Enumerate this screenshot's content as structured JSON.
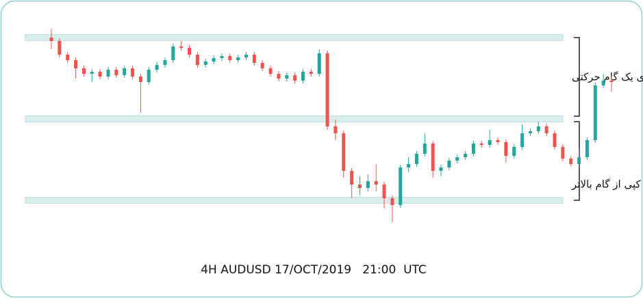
{
  "chart_data": {
    "type": "candlestick",
    "title": "4H AUDUSD 17/OCT/2019   21:00  UTC",
    "ylim": [
      0,
      290
    ],
    "up_color": "#26a69a",
    "down_color": "#ef5350",
    "band_color": "#d9eeec",
    "levels": [
      275,
      156,
      37
    ],
    "annotations": [
      "اندازه گیری یک گام حرکتی",
      "کپی از گام بالاتر"
    ],
    "ohlc": [
      [
        275,
        288,
        258,
        270
      ],
      [
        270,
        274,
        246,
        250
      ],
      [
        250,
        254,
        238,
        242
      ],
      [
        242,
        246,
        215,
        230
      ],
      [
        230,
        234,
        218,
        222
      ],
      [
        222,
        229,
        210,
        225
      ],
      [
        225,
        229,
        214,
        218
      ],
      [
        218,
        232,
        214,
        228
      ],
      [
        228,
        232,
        216,
        220
      ],
      [
        220,
        234,
        216,
        230
      ],
      [
        230,
        234,
        214,
        218
      ],
      [
        218,
        222,
        165,
        210
      ],
      [
        210,
        232,
        206,
        228
      ],
      [
        228,
        239,
        224,
        235
      ],
      [
        235,
        246,
        231,
        242
      ],
      [
        242,
        266,
        238,
        262
      ],
      [
        262,
        270,
        256,
        260
      ],
      [
        260,
        264,
        246,
        250
      ],
      [
        250,
        254,
        231,
        235
      ],
      [
        235,
        244,
        231,
        240
      ],
      [
        240,
        249,
        236,
        245
      ],
      [
        245,
        252,
        241,
        248
      ],
      [
        248,
        252,
        238,
        242
      ],
      [
        242,
        250,
        238,
        246
      ],
      [
        246,
        254,
        242,
        250
      ],
      [
        250,
        254,
        234,
        238
      ],
      [
        238,
        242,
        226,
        230
      ],
      [
        230,
        234,
        218,
        222
      ],
      [
        222,
        226,
        211,
        215
      ],
      [
        215,
        224,
        211,
        220
      ],
      [
        220,
        224,
        208,
        212
      ],
      [
        212,
        229,
        208,
        225
      ],
      [
        225,
        229,
        218,
        222
      ],
      [
        222,
        258,
        218,
        252
      ],
      [
        252,
        256,
        140,
        145
      ],
      [
        145,
        155,
        125,
        135
      ],
      [
        135,
        139,
        70,
        80
      ],
      [
        80,
        84,
        40,
        60
      ],
      [
        60,
        72,
        45,
        55
      ],
      [
        55,
        75,
        50,
        65
      ],
      [
        65,
        90,
        50,
        60
      ],
      [
        60,
        64,
        25,
        40
      ],
      [
        40,
        44,
        5,
        30
      ],
      [
        30,
        89,
        26,
        85
      ],
      [
        85,
        100,
        78,
        90
      ],
      [
        90,
        109,
        86,
        105
      ],
      [
        105,
        135,
        101,
        120
      ],
      [
        120,
        124,
        70,
        80
      ],
      [
        80,
        89,
        72,
        85
      ],
      [
        85,
        99,
        81,
        95
      ],
      [
        95,
        104,
        91,
        100
      ],
      [
        100,
        109,
        96,
        105
      ],
      [
        105,
        124,
        101,
        120
      ],
      [
        120,
        124,
        114,
        118
      ],
      [
        118,
        140,
        114,
        125
      ],
      [
        125,
        129,
        118,
        122
      ],
      [
        122,
        126,
        92,
        102
      ],
      [
        102,
        119,
        98,
        115
      ],
      [
        115,
        148,
        111,
        135
      ],
      [
        135,
        142,
        131,
        138
      ],
      [
        138,
        152,
        134,
        145
      ],
      [
        145,
        149,
        131,
        135
      ],
      [
        135,
        139,
        111,
        115
      ],
      [
        115,
        119,
        94,
        98
      ],
      [
        98,
        102,
        86,
        90
      ],
      [
        90,
        114,
        86,
        100
      ],
      [
        100,
        129,
        96,
        125
      ],
      [
        125,
        209,
        121,
        205
      ],
      [
        205,
        222,
        201,
        212
      ],
      [
        212,
        218,
        196,
        210
      ]
    ]
  }
}
